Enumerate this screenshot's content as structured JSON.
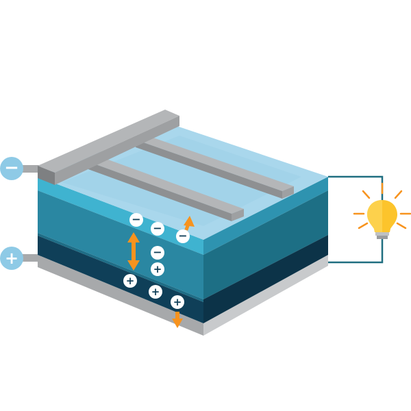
{
  "terminals": {
    "negative_symbol": "−",
    "positive_symbol": "+"
  },
  "charges": {
    "electron_symbol": "−",
    "hole_symbol": "+"
  },
  "colors": {
    "top_glass": "#a9d7ec",
    "n_layer_front": "#2a8aa6",
    "p_layer_front": "#0f3d55",
    "junction": "#38b0cd",
    "metal_contact": "#a7a9ab",
    "terminal_circle": "#8ecae6",
    "arrow": "#f7931e",
    "wire": "#1f6e80",
    "bulb": "#fcc42c"
  },
  "icons": [
    "minus-icon",
    "plus-icon",
    "light-bulb-icon"
  ]
}
